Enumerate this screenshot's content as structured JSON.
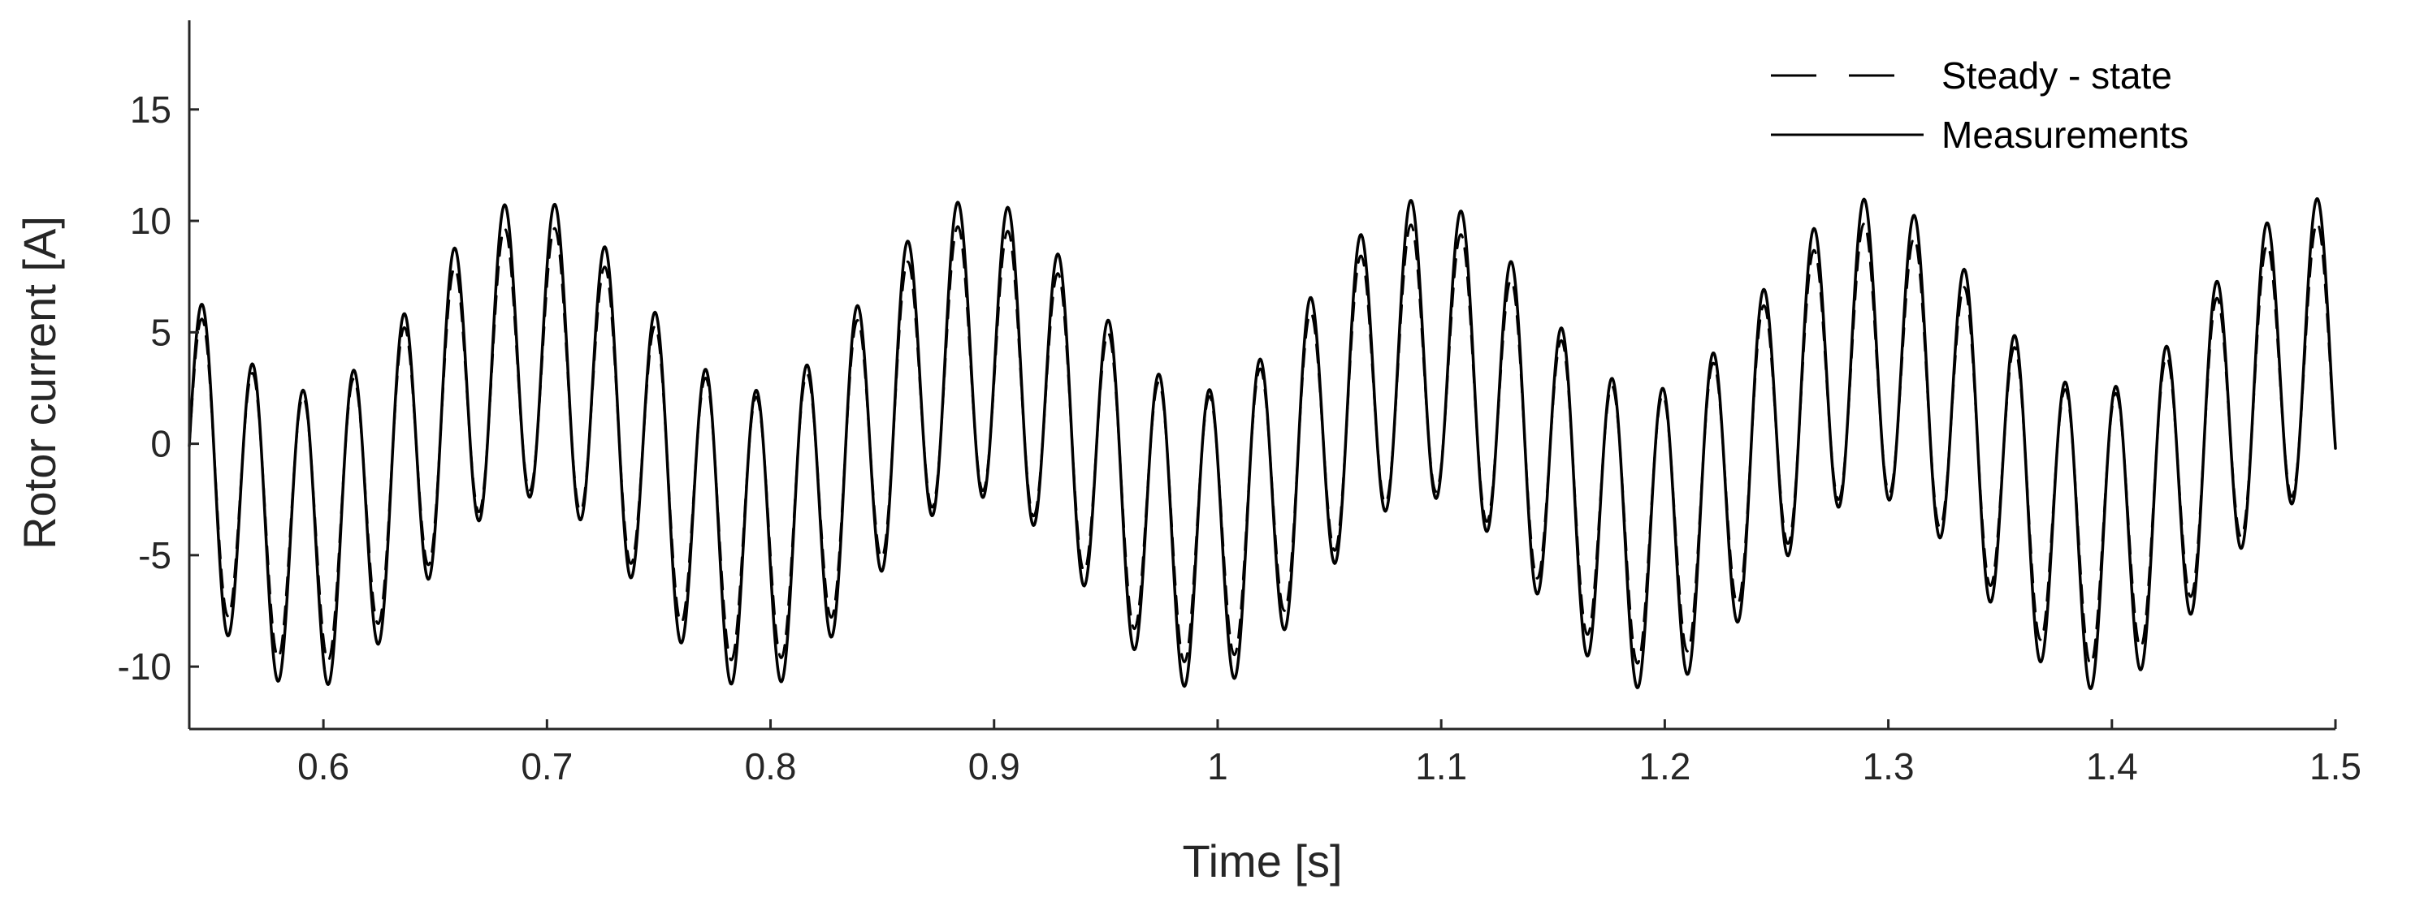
{
  "chart_data": {
    "type": "line",
    "title": "",
    "xlabel": "Time [s]",
    "ylabel": "Rotor current [A]",
    "xlim": [
      0.54,
      1.5
    ],
    "ylim": [
      -12.8,
      19
    ],
    "x_ticks": [
      0.6,
      0.7,
      0.8,
      0.9,
      1,
      1.1,
      1.2,
      1.3,
      1.4,
      1.5
    ],
    "x_tick_labels": [
      "0.6",
      "0.7",
      "0.8",
      "0.9",
      "1",
      "1.1",
      "1.2",
      "1.3",
      "1.4",
      "1.5"
    ],
    "y_ticks": [
      -10,
      -5,
      0,
      5,
      10,
      15
    ],
    "y_tick_labels": [
      "-10",
      "-5",
      "0",
      "5",
      "10",
      "15"
    ],
    "grid": false,
    "legend_position": "top-right",
    "colors": {
      "axes": "#262626",
      "series": "#000000"
    },
    "series": [
      {
        "name": "Steady - state",
        "style": "dashed",
        "x_start": 0.54,
        "x_end": 1.5,
        "samples": 3000,
        "model": {
          "carrier_amplitude": 6.0,
          "carrier_frequency_hz": 44.4,
          "envelope_amplitude": 3.9,
          "envelope_frequency_hz": 5,
          "envelope_peak_time_s": 0.6925,
          "carrier_peak_time_s": 0.681
        }
      },
      {
        "name": "Measurements",
        "style": "solid",
        "x_start": 0.54,
        "x_end": 1.5,
        "samples": 3000,
        "model": {
          "carrier_amplitude": 6.7,
          "carrier_frequency_hz": 44.4,
          "envelope_amplitude": 4.3,
          "envelope_frequency_hz": 5,
          "envelope_peak_time_s": 0.6925,
          "carrier_peak_time_s": 0.681
        }
      }
    ]
  }
}
